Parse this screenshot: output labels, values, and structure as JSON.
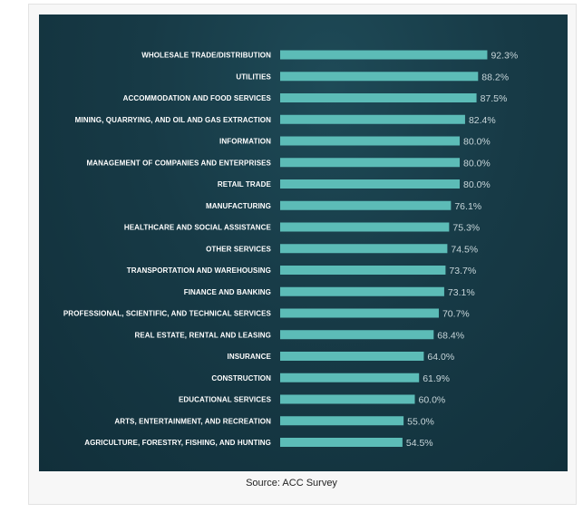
{
  "caption": "Source: ACC Survey",
  "colors": {
    "panel_bg": "#173a46",
    "bar": "#5cbcb7",
    "value_text": "#c8d6da",
    "label_text": "#ffffff"
  },
  "chart_data": {
    "type": "bar",
    "orientation": "horizontal",
    "title": "",
    "xlabel": "",
    "ylabel": "",
    "xlim": [
      0,
      100
    ],
    "grid": false,
    "categories": [
      "WHOLESALE TRADE/DISTRIBUTION",
      "UTILITIES",
      "ACCOMMODATION AND FOOD SERVICES",
      "MINING, QUARRYING, AND OIL AND GAS EXTRACTION",
      "INFORMATION",
      "MANAGEMENT OF COMPANIES AND ENTERPRISES",
      "RETAIL TRADE",
      "MANUFACTURING",
      "HEALTHCARE AND SOCIAL ASSISTANCE",
      "OTHER SERVICES",
      "TRANSPORTATION AND WAREHOUSING",
      "FINANCE AND BANKING",
      "PROFESSIONAL, SCIENTIFIC, AND TECHNICAL SERVICES",
      "REAL ESTATE, RENTAL AND LEASING",
      "INSURANCE",
      "CONSTRUCTION",
      "EDUCATIONAL SERVICES",
      "ARTS, ENTERTAINMENT, AND RECREATION",
      "AGRICULTURE, FORESTRY, FISHING, AND HUNTING"
    ],
    "values": [
      92.3,
      88.2,
      87.5,
      82.4,
      80.0,
      80.0,
      80.0,
      76.1,
      75.3,
      74.5,
      73.7,
      73.1,
      70.7,
      68.4,
      64.0,
      61.9,
      60.0,
      55.0,
      54.5
    ],
    "value_labels": [
      "92.3%",
      "88.2%",
      "87.5%",
      "82.4%",
      "80.0%",
      "80.0%",
      "80.0%",
      "76.1%",
      "75.3%",
      "74.5%",
      "73.7%",
      "73.1%",
      "70.7%",
      "68.4%",
      "64.0%",
      "61.9%",
      "60.0%",
      "55.0%",
      "54.5%"
    ]
  }
}
